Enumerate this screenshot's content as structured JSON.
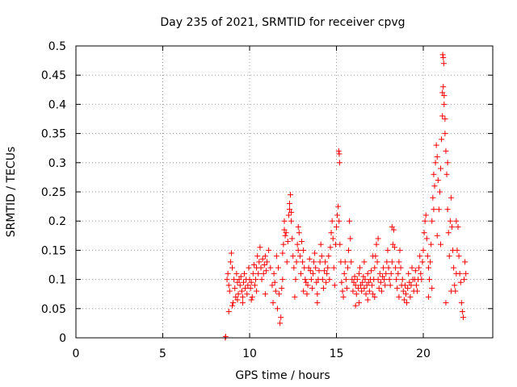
{
  "chart_data": {
    "type": "scatter",
    "title": "Day 235 of 2021, SRMTID for receiver cpvg",
    "xlabel": "GPS time / hours",
    "ylabel": "SRMTID / TECUs",
    "xlim": [
      0,
      24
    ],
    "ylim": [
      0,
      0.5
    ],
    "xticks": [
      0,
      5,
      10,
      15,
      20
    ],
    "xtick_labels": [
      "0",
      "5",
      "10",
      "15",
      "20"
    ],
    "yticks": [
      0,
      0.05,
      0.1,
      0.15,
      0.2,
      0.25,
      0.3,
      0.35,
      0.4,
      0.45,
      0.5
    ],
    "ytick_labels": [
      "0",
      "0.05",
      "0.1",
      "0.15",
      "0.2",
      "0.25",
      "0.3",
      "0.35",
      "0.4",
      "0.45",
      "0.5"
    ],
    "grid": true,
    "marker": "+",
    "color": "#ff0000",
    "series": [
      {
        "name": "SRMTID",
        "points": [
          [
            8.6,
            0.0
          ],
          [
            8.62,
            0.002
          ],
          [
            8.7,
            0.1
          ],
          [
            8.75,
            0.11
          ],
          [
            8.8,
            0.09
          ],
          [
            8.85,
            0.08
          ],
          [
            8.9,
            0.13
          ],
          [
            8.95,
            0.145
          ],
          [
            9.0,
            0.12
          ],
          [
            9.05,
            0.06
          ],
          [
            9.1,
            0.1
          ],
          [
            9.15,
            0.085
          ],
          [
            9.2,
            0.07
          ],
          [
            9.25,
            0.11
          ],
          [
            9.3,
            0.095
          ],
          [
            9.35,
            0.075
          ],
          [
            9.4,
            0.1
          ],
          [
            9.45,
            0.09
          ],
          [
            9.5,
            0.105
          ],
          [
            9.55,
            0.08
          ],
          [
            9.6,
            0.07
          ],
          [
            9.65,
            0.095
          ],
          [
            9.7,
            0.11
          ],
          [
            9.75,
            0.085
          ],
          [
            9.8,
            0.1
          ],
          [
            9.85,
            0.075
          ],
          [
            9.9,
            0.09
          ],
          [
            9.95,
            0.12
          ],
          [
            10.0,
            0.1
          ],
          [
            10.05,
            0.085
          ],
          [
            10.1,
            0.095
          ],
          [
            10.15,
            0.07
          ],
          [
            10.2,
            0.11
          ],
          [
            10.25,
            0.125
          ],
          [
            10.3,
            0.09
          ],
          [
            10.35,
            0.1
          ],
          [
            10.4,
            0.12
          ],
          [
            10.45,
            0.14
          ],
          [
            10.5,
            0.11
          ],
          [
            10.55,
            0.13
          ],
          [
            10.6,
            0.155
          ],
          [
            10.65,
            0.12
          ],
          [
            10.7,
            0.1
          ],
          [
            10.75,
            0.135
          ],
          [
            10.8,
            0.11
          ],
          [
            10.85,
            0.125
          ],
          [
            10.9,
            0.14
          ],
          [
            10.95,
            0.115
          ],
          [
            11.0,
            0.13
          ],
          [
            8.8,
            0.045
          ],
          [
            9.0,
            0.055
          ],
          [
            9.3,
            0.065
          ],
          [
            9.6,
            0.06
          ],
          [
            10.1,
            0.065
          ],
          [
            10.4,
            0.08
          ],
          [
            10.9,
            0.075
          ],
          [
            11.1,
            0.15
          ],
          [
            11.2,
            0.12
          ],
          [
            11.3,
            0.09
          ],
          [
            11.35,
            0.06
          ],
          [
            11.4,
            0.11
          ],
          [
            11.45,
            0.095
          ],
          [
            11.5,
            0.08
          ],
          [
            11.55,
            0.14
          ],
          [
            11.6,
            0.05
          ],
          [
            11.65,
            0.12
          ],
          [
            11.7,
            0.075
          ],
          [
            11.75,
            0.025
          ],
          [
            11.8,
            0.035
          ],
          [
            11.85,
            0.085
          ],
          [
            11.9,
            0.1
          ],
          [
            11.95,
            0.16
          ],
          [
            12.0,
            0.2
          ],
          [
            12.05,
            0.175
          ],
          [
            12.1,
            0.18
          ],
          [
            12.15,
            0.13
          ],
          [
            12.2,
            0.165
          ],
          [
            12.25,
            0.21
          ],
          [
            12.3,
            0.23
          ],
          [
            12.35,
            0.245
          ],
          [
            12.4,
            0.2
          ],
          [
            12.45,
            0.17
          ],
          [
            12.5,
            0.14
          ],
          [
            12.55,
            0.12
          ],
          [
            12.6,
            0.07
          ],
          [
            12.65,
            0.1
          ],
          [
            12.7,
            0.13
          ],
          [
            12.75,
            0.16
          ],
          [
            12.8,
            0.15
          ],
          [
            12.85,
            0.18
          ],
          [
            12.9,
            0.14
          ],
          [
            12.95,
            0.11
          ],
          [
            13.0,
            0.165
          ],
          [
            13.05,
            0.13
          ],
          [
            13.1,
            0.15
          ],
          [
            13.15,
            0.12
          ],
          [
            13.2,
            0.1
          ],
          [
            13.25,
            0.095
          ],
          [
            13.3,
            0.075
          ],
          [
            13.35,
            0.09
          ],
          [
            13.4,
            0.12
          ],
          [
            13.45,
            0.135
          ],
          [
            13.5,
            0.115
          ],
          [
            13.55,
            0.1
          ],
          [
            13.6,
            0.085
          ],
          [
            13.65,
            0.11
          ],
          [
            13.7,
            0.13
          ],
          [
            13.75,
            0.145
          ],
          [
            13.8,
            0.12
          ],
          [
            13.85,
            0.095
          ],
          [
            13.9,
            0.075
          ],
          [
            13.95,
            0.1
          ],
          [
            14.0,
            0.115
          ],
          [
            14.05,
            0.13
          ],
          [
            14.1,
            0.16
          ],
          [
            14.15,
            0.14
          ],
          [
            14.2,
            0.1
          ],
          [
            14.25,
            0.085
          ],
          [
            14.3,
            0.115
          ],
          [
            14.35,
            0.13
          ],
          [
            14.4,
            0.095
          ],
          [
            14.45,
            0.11
          ],
          [
            14.5,
            0.12
          ],
          [
            14.55,
            0.14
          ],
          [
            14.6,
            0.1
          ],
          [
            12.3,
            0.22
          ],
          [
            12.4,
            0.215
          ],
          [
            12.0,
            0.185
          ],
          [
            11.9,
            0.145
          ],
          [
            12.8,
            0.19
          ],
          [
            13.1,
            0.08
          ],
          [
            13.9,
            0.06
          ],
          [
            14.65,
            0.155
          ],
          [
            14.7,
            0.18
          ],
          [
            14.75,
            0.2
          ],
          [
            14.8,
            0.17
          ],
          [
            14.85,
            0.12
          ],
          [
            14.9,
            0.09
          ],
          [
            14.95,
            0.16
          ],
          [
            15.0,
            0.19
          ],
          [
            15.05,
            0.21
          ],
          [
            15.1,
            0.225
          ],
          [
            15.15,
            0.2
          ],
          [
            15.2,
            0.16
          ],
          [
            15.25,
            0.13
          ],
          [
            15.3,
            0.095
          ],
          [
            15.35,
            0.08
          ],
          [
            15.4,
            0.07
          ],
          [
            15.45,
            0.11
          ],
          [
            15.5,
            0.13
          ],
          [
            15.55,
            0.1
          ],
          [
            15.6,
            0.085
          ],
          [
            15.65,
            0.12
          ],
          [
            15.7,
            0.15
          ],
          [
            15.75,
            0.2
          ],
          [
            15.8,
            0.17
          ],
          [
            15.85,
            0.13
          ],
          [
            15.9,
            0.1
          ],
          [
            15.13,
            0.32
          ],
          [
            15.16,
            0.315
          ],
          [
            15.18,
            0.3
          ],
          [
            15.95,
            0.08
          ],
          [
            16.0,
            0.095
          ],
          [
            16.05,
            0.105
          ],
          [
            16.1,
            0.09
          ],
          [
            16.15,
            0.075
          ],
          [
            16.2,
            0.1
          ],
          [
            16.25,
            0.085
          ],
          [
            16.3,
            0.11
          ],
          [
            16.35,
            0.12
          ],
          [
            16.4,
            0.09
          ],
          [
            16.45,
            0.08
          ],
          [
            16.5,
            0.095
          ],
          [
            16.55,
            0.105
          ],
          [
            16.6,
            0.085
          ],
          [
            16.65,
            0.1
          ],
          [
            16.7,
            0.075
          ],
          [
            16.75,
            0.09
          ],
          [
            16.8,
            0.11
          ],
          [
            16.85,
            0.095
          ],
          [
            16.9,
            0.08
          ],
          [
            16.95,
            0.1
          ],
          [
            17.0,
            0.115
          ],
          [
            17.05,
            0.09
          ],
          [
            17.1,
            0.075
          ],
          [
            17.15,
            0.1
          ],
          [
            17.2,
            0.12
          ],
          [
            17.25,
            0.14
          ],
          [
            17.3,
            0.16
          ],
          [
            17.35,
            0.13
          ],
          [
            17.4,
            0.1
          ],
          [
            17.45,
            0.085
          ],
          [
            17.5,
            0.11
          ],
          [
            17.55,
            0.095
          ],
          [
            17.6,
            0.08
          ],
          [
            17.65,
            0.105
          ],
          [
            17.7,
            0.12
          ],
          [
            17.75,
            0.1
          ],
          [
            17.8,
            0.09
          ],
          [
            17.85,
            0.11
          ],
          [
            17.9,
            0.13
          ],
          [
            17.95,
            0.15
          ],
          [
            18.0,
            0.12
          ],
          [
            18.05,
            0.1
          ],
          [
            18.1,
            0.09
          ],
          [
            18.15,
            0.11
          ],
          [
            18.2,
            0.13
          ],
          [
            18.25,
            0.16
          ],
          [
            18.3,
            0.185
          ],
          [
            18.35,
            0.155
          ],
          [
            18.4,
            0.12
          ],
          [
            18.45,
            0.1
          ],
          [
            18.5,
            0.085
          ],
          [
            18.55,
            0.11
          ],
          [
            18.6,
            0.13
          ],
          [
            18.65,
            0.15
          ],
          [
            18.7,
            0.12
          ],
          [
            18.75,
            0.09
          ],
          [
            18.8,
            0.1
          ],
          [
            18.85,
            0.08
          ],
          [
            18.9,
            0.065
          ],
          [
            18.95,
            0.09
          ],
          [
            19.0,
            0.075
          ],
          [
            19.05,
            0.06
          ],
          [
            19.1,
            0.085
          ],
          [
            19.15,
            0.11
          ],
          [
            19.2,
            0.095
          ],
          [
            19.25,
            0.07
          ],
          [
            19.3,
            0.09
          ],
          [
            19.35,
            0.12
          ],
          [
            19.4,
            0.1
          ],
          [
            19.45,
            0.08
          ],
          [
            19.5,
            0.1
          ],
          [
            19.55,
            0.115
          ],
          [
            19.6,
            0.09
          ],
          [
            19.65,
            0.08
          ],
          [
            19.7,
            0.1
          ],
          [
            16.3,
            0.06
          ],
          [
            16.8,
            0.065
          ],
          [
            17.2,
            0.07
          ],
          [
            16.6,
            0.13
          ],
          [
            17.1,
            0.14
          ],
          [
            18.2,
            0.19
          ],
          [
            17.4,
            0.17
          ],
          [
            16.1,
            0.055
          ],
          [
            18.6,
            0.07
          ],
          [
            19.75,
            0.12
          ],
          [
            19.8,
            0.14
          ],
          [
            19.85,
            0.11
          ],
          [
            19.9,
            0.1
          ],
          [
            19.95,
            0.13
          ],
          [
            20.0,
            0.15
          ],
          [
            20.05,
            0.18
          ],
          [
            20.1,
            0.2
          ],
          [
            20.15,
            0.21
          ],
          [
            20.2,
            0.17
          ],
          [
            20.25,
            0.14
          ],
          [
            20.3,
            0.12
          ],
          [
            20.35,
            0.1
          ],
          [
            20.4,
            0.13
          ],
          [
            20.45,
            0.16
          ],
          [
            20.5,
            0.2
          ],
          [
            20.55,
            0.24
          ],
          [
            20.6,
            0.28
          ],
          [
            20.65,
            0.26
          ],
          [
            20.7,
            0.3
          ],
          [
            20.75,
            0.33
          ],
          [
            20.8,
            0.31
          ],
          [
            20.85,
            0.27
          ],
          [
            20.9,
            0.22
          ],
          [
            20.95,
            0.25
          ],
          [
            21.0,
            0.29
          ],
          [
            21.05,
            0.34
          ],
          [
            21.1,
            0.38
          ],
          [
            21.15,
            0.43
          ],
          [
            21.2,
            0.4
          ],
          [
            21.25,
            0.35
          ],
          [
            21.3,
            0.32
          ],
          [
            21.35,
            0.28
          ],
          [
            21.4,
            0.22
          ],
          [
            21.45,
            0.18
          ],
          [
            21.5,
            0.14
          ],
          [
            21.55,
            0.2
          ],
          [
            21.6,
            0.24
          ],
          [
            21.65,
            0.19
          ],
          [
            21.7,
            0.15
          ],
          [
            21.75,
            0.12
          ],
          [
            21.8,
            0.09
          ],
          [
            21.85,
            0.08
          ],
          [
            21.9,
            0.11
          ],
          [
            21.95,
            0.15
          ],
          [
            22.0,
            0.19
          ],
          [
            22.05,
            0.14
          ],
          [
            22.1,
            0.11
          ],
          [
            22.15,
            0.095
          ],
          [
            22.2,
            0.06
          ],
          [
            22.25,
            0.045
          ],
          [
            22.3,
            0.035
          ],
          [
            22.35,
            0.1
          ],
          [
            22.4,
            0.13
          ],
          [
            22.45,
            0.11
          ],
          [
            21.12,
            0.485
          ],
          [
            21.15,
            0.48
          ],
          [
            21.18,
            0.47
          ],
          [
            21.1,
            0.42
          ],
          [
            21.2,
            0.415
          ],
          [
            21.25,
            0.375
          ],
          [
            20.6,
            0.22
          ],
          [
            20.8,
            0.175
          ],
          [
            21.0,
            0.16
          ],
          [
            21.3,
            0.06
          ],
          [
            21.6,
            0.08
          ],
          [
            21.9,
            0.2
          ],
          [
            20.3,
            0.07
          ],
          [
            20.5,
            0.085
          ],
          [
            21.4,
            0.3
          ]
        ]
      }
    ]
  }
}
